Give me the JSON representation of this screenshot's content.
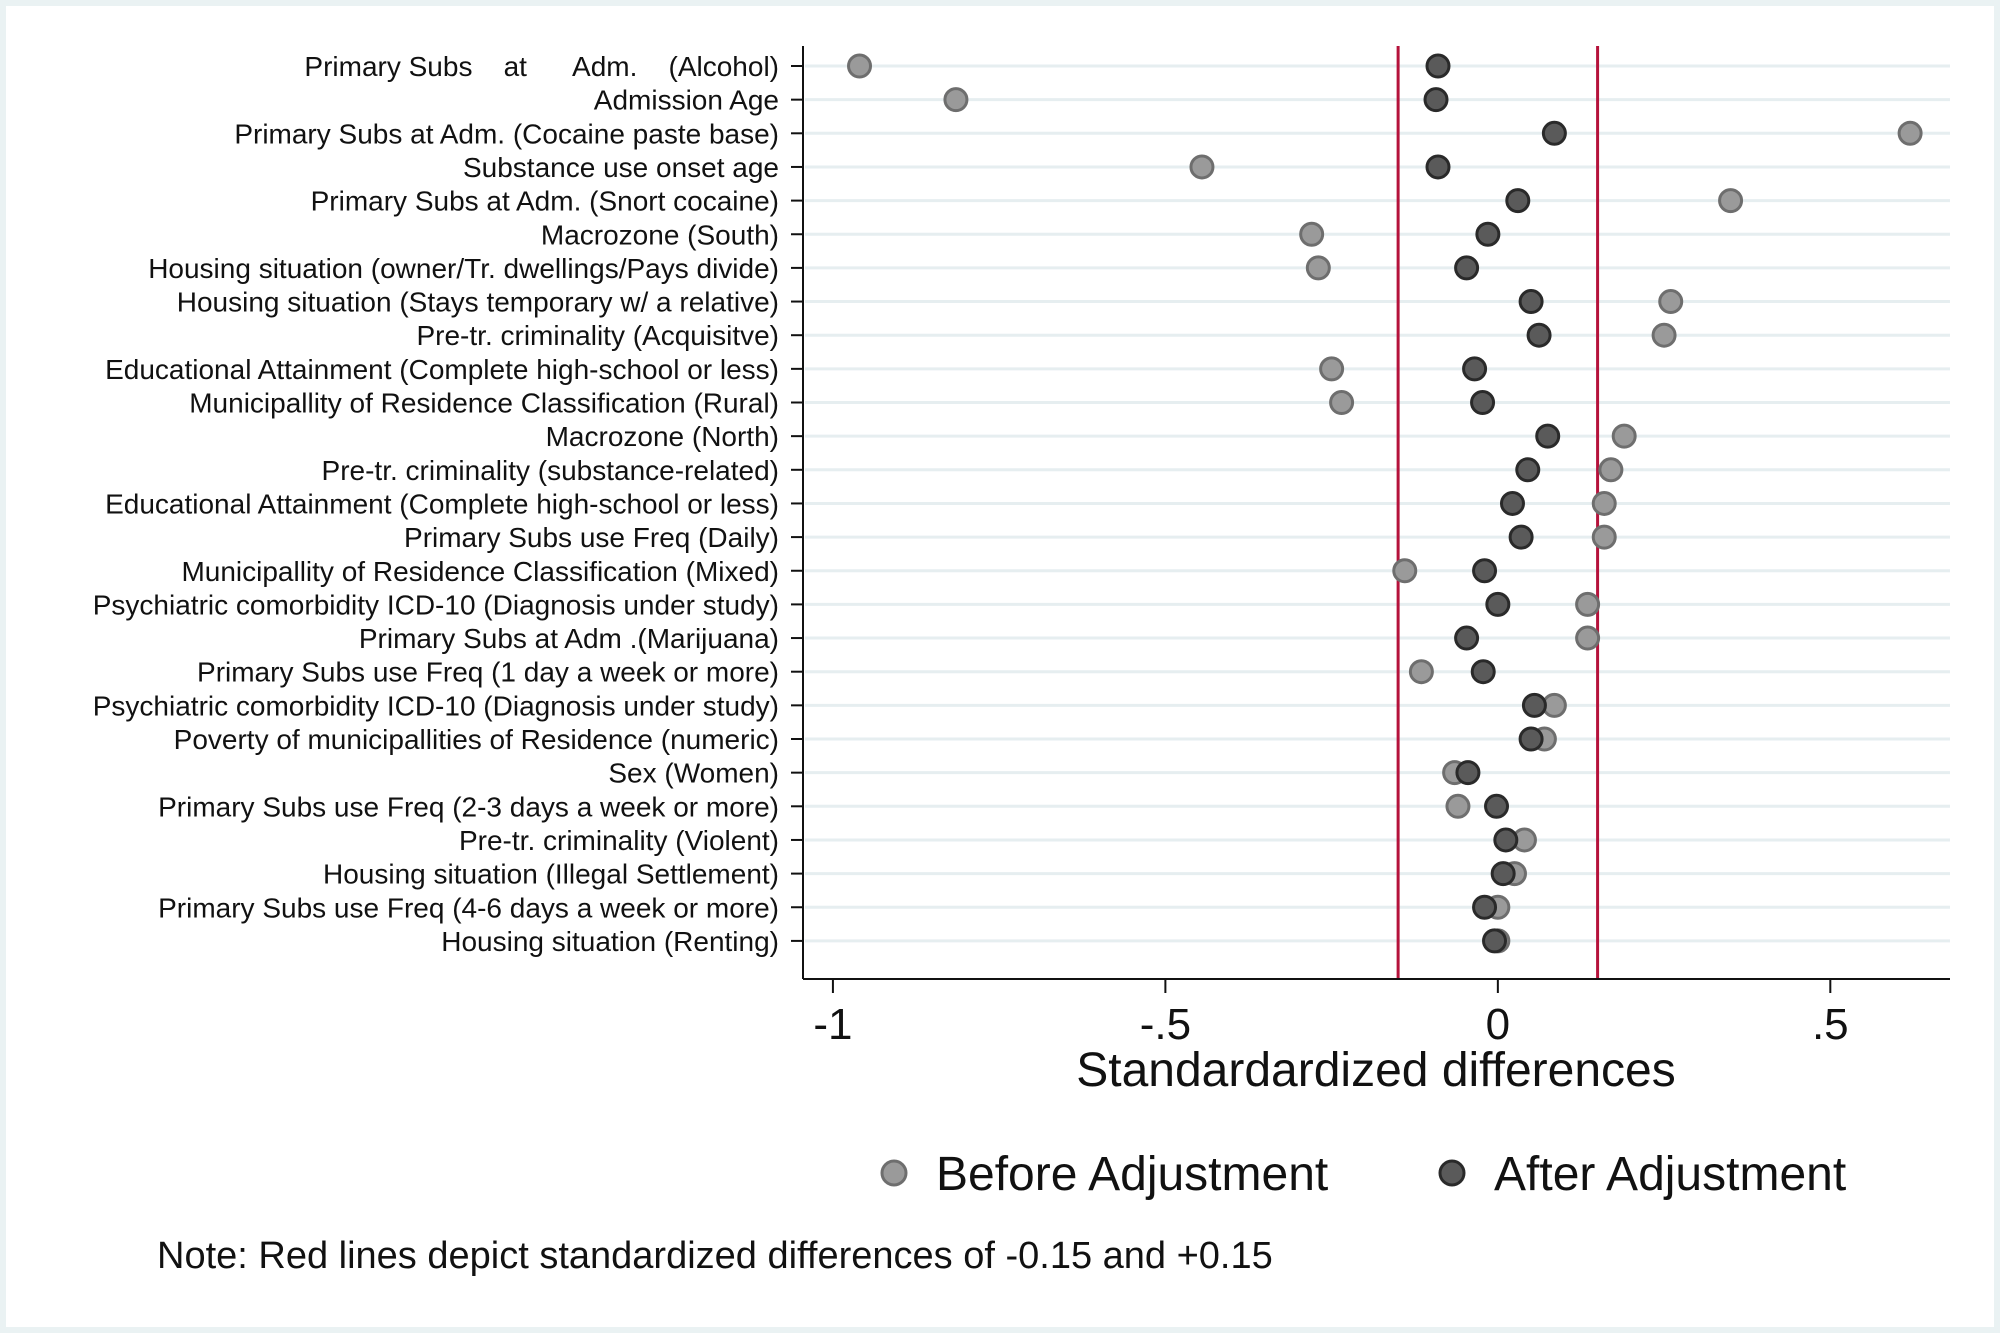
{
  "chart_data": {
    "type": "scatter",
    "xlabel": "Standardardized differences",
    "xlim": [
      -1.045,
      0.68
    ],
    "xticks": [
      {
        "value": -1,
        "label": "-1"
      },
      {
        "value": -0.5,
        "label": "-.5"
      },
      {
        "value": 0,
        "label": "0"
      },
      {
        "value": 0.5,
        "label": ".5"
      }
    ],
    "reference_lines": [
      -0.15,
      0.15
    ],
    "reference_line_color": "#b5123b",
    "grid": true,
    "legend_position": "bottom",
    "categories": [
      "Primary Subs    at      Adm.    (Alcohol)",
      "Admission Age",
      "Primary Subs at Adm. (Cocaine paste base)",
      "Substance use onset age",
      "Primary Subs at Adm. (Snort cocaine)",
      "Macrozone (South)",
      "Housing situation (owner/Tr. dwellings/Pays divide)",
      "Housing situation (Stays temporary w/ a relative)",
      "Pre-tr. criminality (Acquisitve)",
      "Educational Attainment (Complete high-school or less)",
      "Municipallity of Residence Classification (Rural)",
      "Macrozone (North)",
      "Pre-tr. criminality (substance-related)",
      "Educational Attainment (Complete high-school or less)",
      "Primary Subs use Freq (Daily)",
      "Municipallity of Residence Classification (Mixed)",
      "Psychiatric comorbidity ICD-10 (Diagnosis under study)",
      "Primary Subs at Adm .(Marijuana)",
      "Primary Subs use Freq (1 day a week or more)",
      "Psychiatric comorbidity ICD-10 (Diagnosis under study)",
      "Poverty of municipallities of Residence (numeric)",
      "Sex (Women)",
      "Primary Subs use Freq (2-3 days a week or more)",
      "Pre-tr. criminality (Violent)",
      "Housing situation (Illegal Settlement)",
      "Primary Subs use Freq (4-6 days a week or more)",
      "Housing situation (Renting)"
    ],
    "series": [
      {
        "name": "Before Adjustment",
        "color": "#9a9a9a",
        "stroke": "#6e6e6e",
        "values": [
          -0.96,
          -0.815,
          0.62,
          -0.445,
          0.35,
          -0.28,
          -0.27,
          0.26,
          0.25,
          -0.25,
          -0.235,
          0.19,
          0.17,
          0.16,
          0.16,
          -0.14,
          0.135,
          0.135,
          -0.115,
          0.085,
          0.07,
          -0.065,
          -0.06,
          0.04,
          0.025,
          0.0,
          0.0
        ]
      },
      {
        "name": "After Adjustment",
        "color": "#5a5a5a",
        "stroke": "#2a2a2a",
        "values": [
          -0.09,
          -0.093,
          0.085,
          -0.09,
          0.03,
          -0.015,
          -0.047,
          0.05,
          0.062,
          -0.035,
          -0.023,
          0.075,
          0.045,
          0.022,
          0.035,
          -0.02,
          0.0,
          -0.047,
          -0.022,
          0.055,
          0.05,
          -0.045,
          -0.002,
          0.012,
          0.008,
          -0.02,
          -0.005
        ]
      }
    ],
    "note": "Note: Red lines depict standardized differences of -0.15 and +0.15"
  }
}
